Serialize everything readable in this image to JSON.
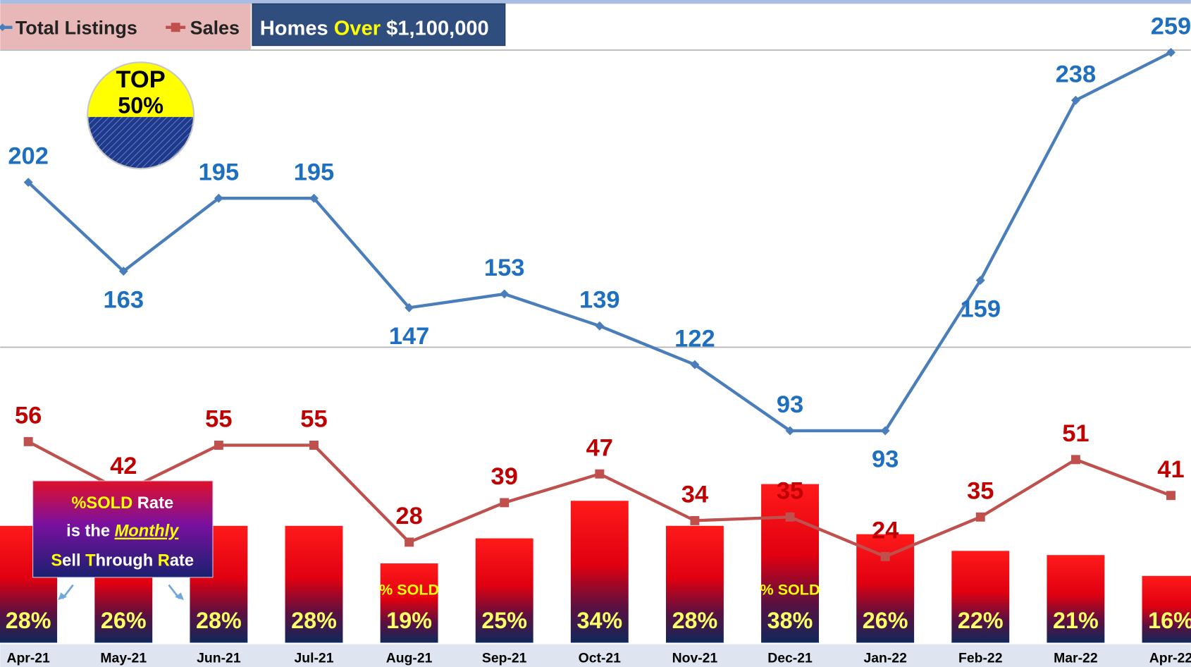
{
  "chart_data": {
    "type": "combo",
    "title": {
      "start": "Homes ",
      "highlight": "Over",
      "end": " $1,100,000"
    },
    "badge": {
      "top": "TOP",
      "bottom": "50%"
    },
    "categories": [
      "Apr-21",
      "May-21",
      "Jun-21",
      "Jul-21",
      "Aug-21",
      "Sep-21",
      "Oct-21",
      "Nov-21",
      "Dec-21",
      "Jan-22",
      "Feb-22",
      "Mar-22",
      "Apr-22"
    ],
    "series": [
      {
        "name": "Total Listings",
        "color": "#4a7ebb",
        "label_color": "#1f6fc0",
        "type": "line",
        "axis": "y",
        "values": [
          202,
          163,
          195,
          195,
          147,
          153,
          139,
          122,
          93,
          93,
          159,
          238,
          259
        ]
      },
      {
        "name": "Sales",
        "color": "#c0504d",
        "label_color": "#c00000",
        "type": "line",
        "axis": "y2",
        "values": [
          56,
          42,
          55,
          55,
          28,
          39,
          47,
          34,
          35,
          24,
          35,
          51,
          41
        ]
      }
    ],
    "percent_sold": {
      "type": "bar",
      "axis": "y3",
      "values": [
        28,
        26,
        28,
        28,
        19,
        25,
        34,
        28,
        38,
        26,
        22,
        21,
        16
      ],
      "value_labels": [
        "28%",
        "26%",
        "28%",
        "28%",
        "19%",
        "25%",
        "34%",
        "28%",
        "38%",
        "26%",
        "22%",
        "21%",
        "16%"
      ]
    },
    "ylim": [
      0,
      282
    ],
    "y2lim": [
      0,
      179
    ],
    "y3lim": [
      0,
      154
    ],
    "sold_notes": [
      {
        "text": "% SOLD",
        "category": "Aug-21"
      },
      {
        "text": "% SOLD",
        "category": "Dec-21"
      }
    ],
    "annotation": [
      [
        {
          "text": "%SOLD",
          "color": "#ffff00"
        },
        {
          "text": " Rate",
          "color": "#ffffff"
        }
      ],
      [
        {
          "text": "is the ",
          "color": "#ffffff"
        },
        {
          "text": "Monthly",
          "color": "#ffff00",
          "italic": true
        }
      ],
      [
        {
          "text": "S",
          "color": "#ffff00"
        },
        {
          "text": "ell ",
          "color": "#ffffff"
        },
        {
          "text": "T",
          "color": "#ffff00"
        },
        {
          "text": "hrough ",
          "color": "#ffffff"
        },
        {
          "text": "R",
          "color": "#ffff00"
        },
        {
          "text": "ate",
          "color": "#ffffff"
        }
      ]
    ]
  }
}
